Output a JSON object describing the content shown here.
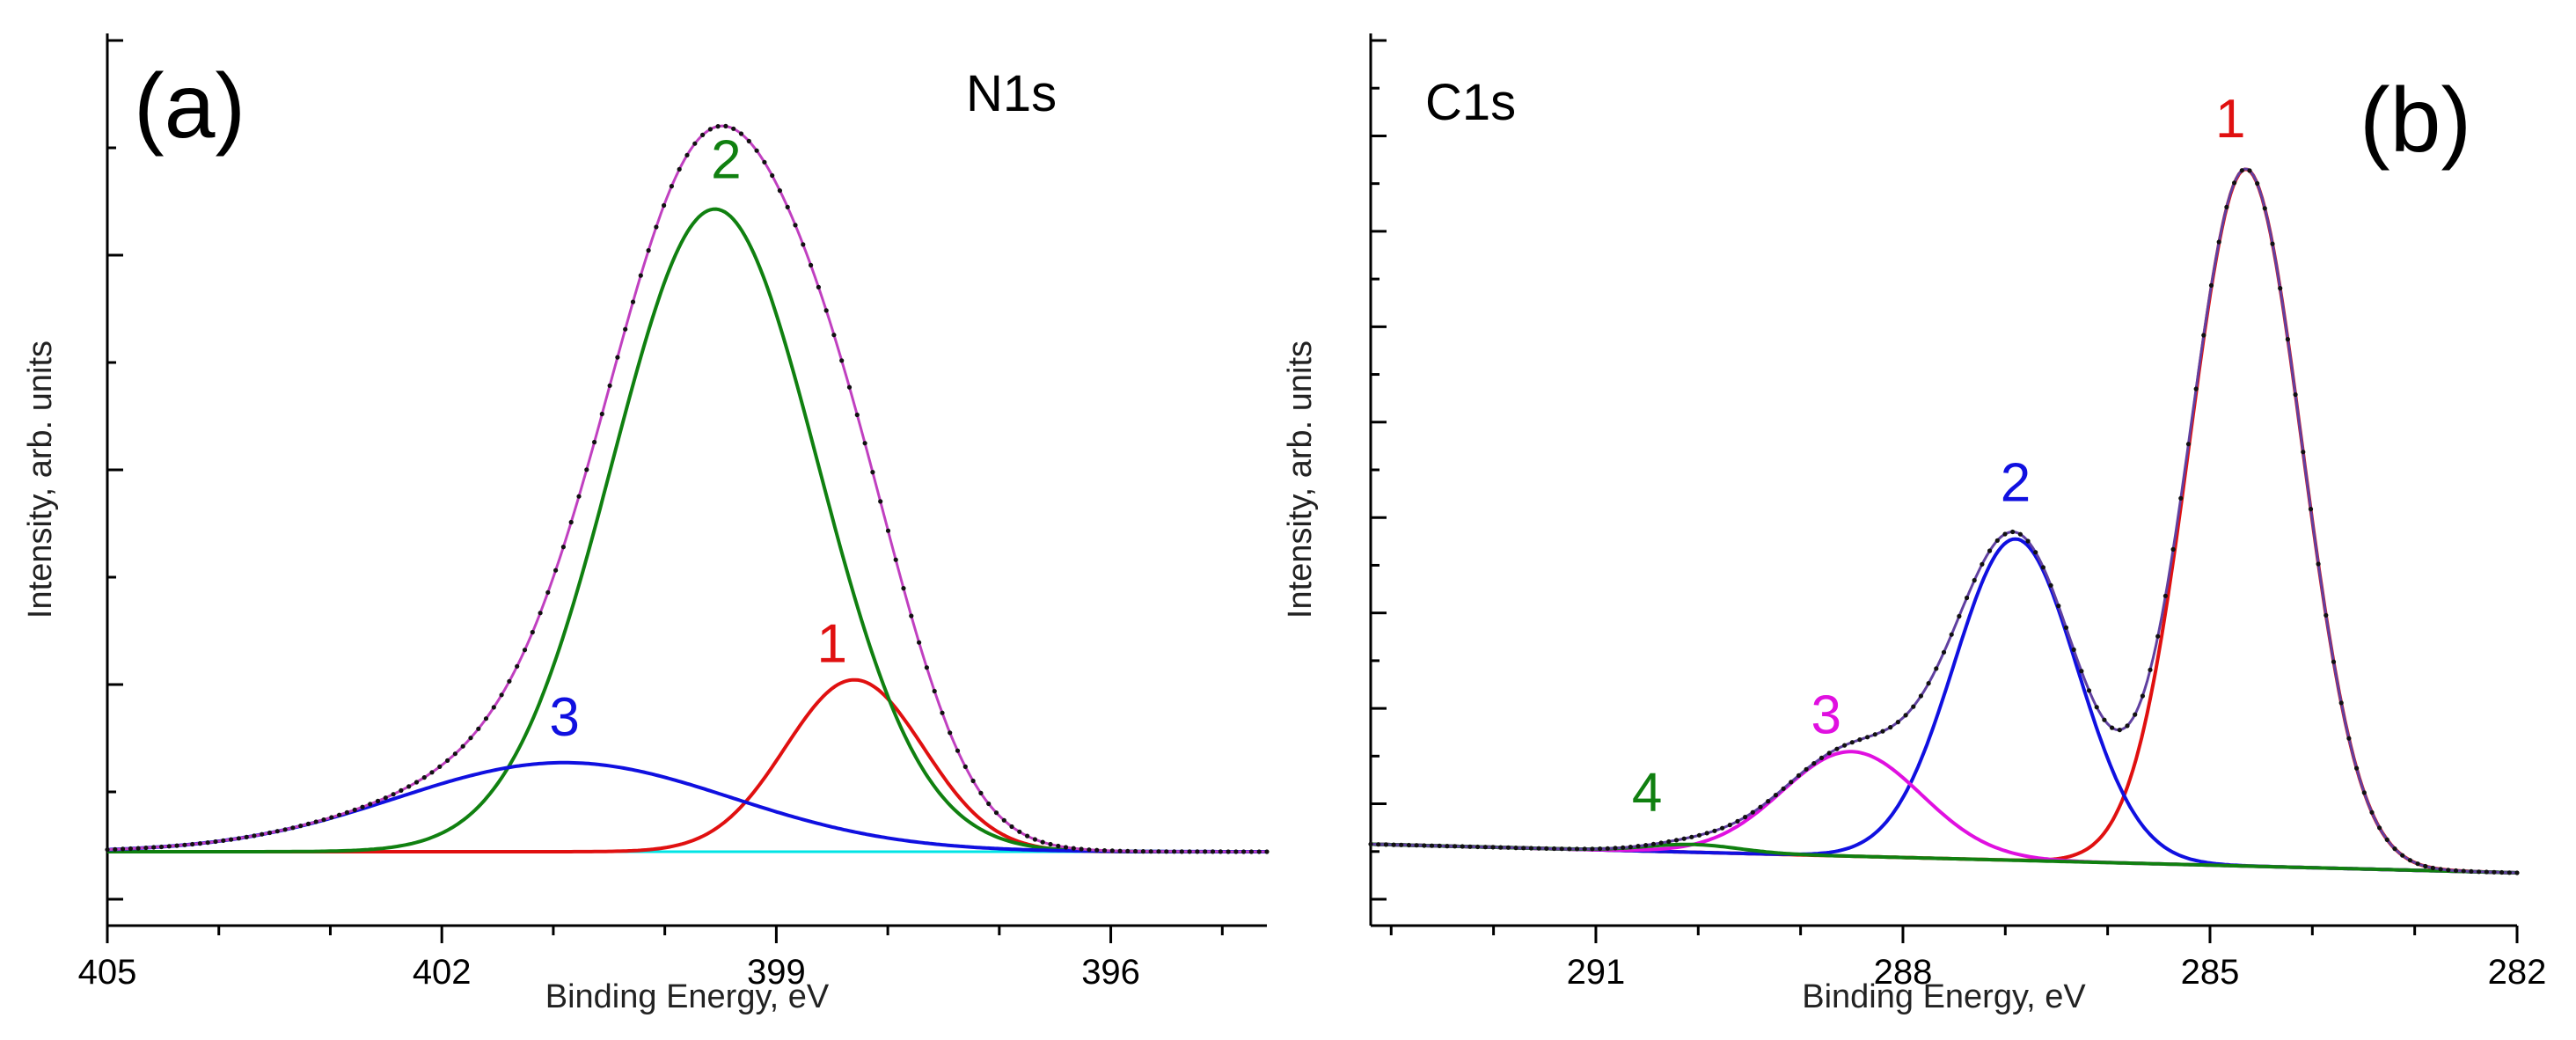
{
  "chart_data": [
    {
      "type": "line",
      "panel_label": "(a)",
      "spectrum_label": "N1s",
      "xlabel": "Binding Energy, eV",
      "ylabel": "Intensity, arb. units",
      "x_reversed": true,
      "xlim": [
        405,
        394.6
      ],
      "ylim": [
        0,
        1.0
      ],
      "xticks": [
        405,
        402,
        399,
        396
      ],
      "y_tick_labels": false,
      "background_color": "#00e5e5",
      "envelope_color": "#c040c0",
      "components": [
        {
          "name": "1",
          "color": "#e01010",
          "center": 398.3,
          "height": 0.222,
          "sigma": 0.62
        },
        {
          "name": "2",
          "color": "#108010",
          "center": 399.55,
          "height": 0.83,
          "sigma": 0.92
        },
        {
          "name": "3",
          "color": "#1010e0",
          "center": 400.9,
          "height": 0.115,
          "sigma": 1.5
        }
      ],
      "labels": [
        {
          "text": "1",
          "x": 398.5,
          "y": 0.245
        },
        {
          "text": "2",
          "x": 399.45,
          "y": 0.87
        },
        {
          "text": "3",
          "x": 400.9,
          "y": 0.15
        }
      ]
    },
    {
      "type": "line",
      "panel_label": "(b)",
      "spectrum_label": "C1s",
      "xlabel": "Binding Energy, eV",
      "ylabel": "Intensity, arb. units",
      "x_reversed": true,
      "xlim": [
        293.2,
        282
      ],
      "ylim": [
        0,
        1.0
      ],
      "xticks": [
        291,
        288,
        285,
        282
      ],
      "y_tick_labels": false,
      "background_color": "#207070",
      "envelope_color": "#6040a0",
      "baseline": {
        "start": 0.037,
        "end": 0.0
      },
      "components": [
        {
          "name": "1",
          "color": "#e01010",
          "center": 284.65,
          "height": 0.9,
          "sigma": 0.55
        },
        {
          "name": "2",
          "color": "#1010e0",
          "center": 286.9,
          "height": 0.415,
          "sigma": 0.6
        },
        {
          "name": "3",
          "color": "#e010e0",
          "center": 288.5,
          "height": 0.135,
          "sigma": 0.68
        },
        {
          "name": "4",
          "color": "#108010",
          "center": 290.05,
          "height": 0.01,
          "sigma": 0.45
        }
      ],
      "labels": [
        {
          "text": "1",
          "x": 284.8,
          "y": 0.95
        },
        {
          "text": "2",
          "x": 286.9,
          "y": 0.48
        },
        {
          "text": "3",
          "x": 288.75,
          "y": 0.18
        },
        {
          "text": "4",
          "x": 290.5,
          "y": 0.08
        }
      ]
    }
  ]
}
